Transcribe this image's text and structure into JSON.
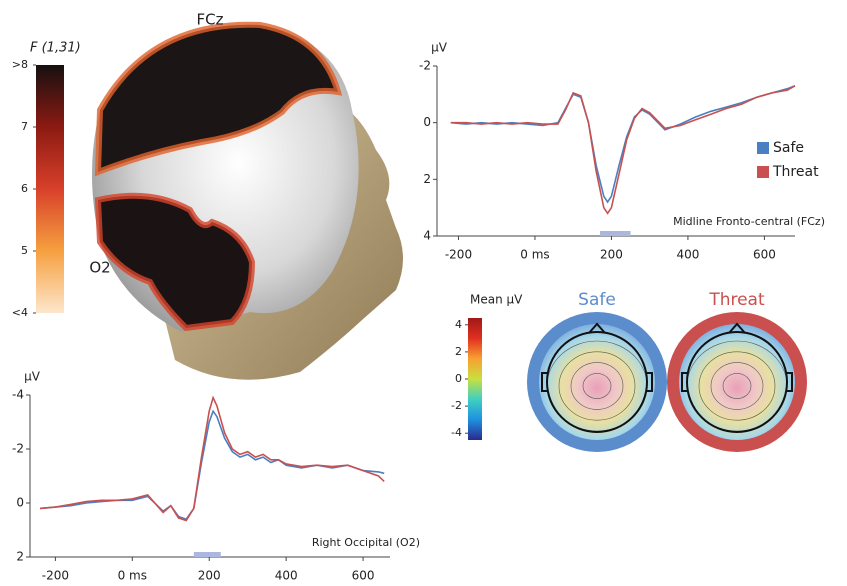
{
  "head_map": {
    "labels": [
      "FCz",
      "O2"
    ]
  },
  "chart_data": [
    {
      "type": "colorbar",
      "title": "F (1,31)",
      "ylim": [
        4,
        8
      ],
      "yticks": [
        {
          "value": 8,
          "label": ">8"
        },
        7,
        6,
        5,
        {
          "value": 4,
          "label": "<4"
        }
      ],
      "colors": [
        "#fde6cc",
        "#f6a040",
        "#d8402a",
        "#8c1a12",
        "#161010"
      ]
    },
    {
      "type": "line",
      "ylabel": "µV",
      "annotation": "Midline Fronto-central (FCz)",
      "x": [
        -220,
        -180,
        -140,
        -100,
        -60,
        -20,
        20,
        60,
        80,
        100,
        120,
        140,
        160,
        180,
        190,
        200,
        220,
        240,
        260,
        280,
        300,
        340,
        380,
        420,
        460,
        500,
        540,
        580,
        620,
        660,
        680
      ],
      "xlim": [
        -230,
        680
      ],
      "xticks": [
        -200,
        {
          "value": 0,
          "label": "0 ms"
        },
        200,
        400,
        600
      ],
      "ylim": [
        -2,
        4
      ],
      "yticks": [
        -2,
        0,
        2,
        4
      ],
      "invert_y": true,
      "highlight": [
        170,
        250
      ],
      "highlight_color": "#aab8e0",
      "legend": "right",
      "series": [
        {
          "name": "Safe",
          "color": "#4a7fc1",
          "values": [
            0,
            0.05,
            0,
            0.05,
            0,
            0.05,
            0.1,
            0,
            -0.5,
            -1.0,
            -0.9,
            0,
            1.5,
            2.6,
            2.8,
            2.6,
            1.5,
            0.5,
            -0.2,
            -0.45,
            -0.3,
            0.25,
            0.05,
            -0.2,
            -0.4,
            -0.55,
            -0.7,
            -0.9,
            -1.05,
            -1.2,
            -1.3
          ]
        },
        {
          "name": "Threat",
          "color": "#c9504f",
          "values": [
            0,
            0,
            0.05,
            0,
            0.05,
            0,
            0.05,
            0.05,
            -0.45,
            -1.05,
            -0.95,
            0,
            1.7,
            3.0,
            3.2,
            3.0,
            1.8,
            0.6,
            -0.15,
            -0.5,
            -0.35,
            0.2,
            0.1,
            -0.1,
            -0.3,
            -0.5,
            -0.65,
            -0.9,
            -1.05,
            -1.15,
            -1.3
          ]
        }
      ]
    },
    {
      "type": "line",
      "ylabel": "µV",
      "annotation": "Right Occipital (O2)",
      "x": [
        -240,
        -200,
        -160,
        -120,
        -80,
        -40,
        0,
        40,
        80,
        100,
        120,
        140,
        160,
        180,
        200,
        210,
        220,
        240,
        260,
        280,
        300,
        320,
        340,
        360,
        380,
        400,
        440,
        480,
        520,
        560,
        600,
        640,
        655
      ],
      "xlim": [
        -240,
        670
      ],
      "xticks": [
        -200,
        {
          "value": 0,
          "label": "0 ms"
        },
        200,
        400,
        600
      ],
      "ylim": [
        -4,
        2
      ],
      "yticks": [
        -4,
        -2,
        0,
        2
      ],
      "invert_y": true,
      "highlight": [
        160,
        230
      ],
      "highlight_color": "#aab8e0",
      "series": [
        {
          "name": "Safe",
          "color": "#4a7fc1",
          "values": [
            0.2,
            0.15,
            0.1,
            0.0,
            -0.05,
            -0.1,
            -0.1,
            -0.25,
            0.3,
            0.1,
            0.5,
            0.6,
            0.2,
            -1.5,
            -3.0,
            -3.4,
            -3.2,
            -2.4,
            -1.9,
            -1.7,
            -1.8,
            -1.6,
            -1.7,
            -1.5,
            -1.6,
            -1.4,
            -1.3,
            -1.4,
            -1.3,
            -1.4,
            -1.2,
            -1.15,
            -1.1
          ]
        },
        {
          "name": "Threat",
          "color": "#c9504f",
          "values": [
            0.2,
            0.15,
            0.05,
            -0.05,
            -0.1,
            -0.1,
            -0.15,
            -0.3,
            0.35,
            0.1,
            0.55,
            0.65,
            0.2,
            -1.7,
            -3.4,
            -3.9,
            -3.6,
            -2.6,
            -2.0,
            -1.8,
            -1.9,
            -1.7,
            -1.8,
            -1.6,
            -1.6,
            -1.45,
            -1.35,
            -1.4,
            -1.35,
            -1.4,
            -1.2,
            -1.0,
            -0.8
          ]
        }
      ]
    },
    {
      "type": "colorbar",
      "title": "Mean µV",
      "ylim": [
        -4.5,
        4.5
      ],
      "yticks": [
        4,
        2,
        0,
        -2,
        -4
      ],
      "colors": [
        "#2a2a8c",
        "#1e90e0",
        "#3fd0c0",
        "#c8e040",
        "#f8a030",
        "#e03020",
        "#a01818"
      ]
    },
    {
      "type": "topomap",
      "maps": [
        {
          "name": "Safe",
          "color": "#5b8ccc"
        },
        {
          "name": "Threat",
          "color": "#c9504f"
        }
      ]
    }
  ]
}
